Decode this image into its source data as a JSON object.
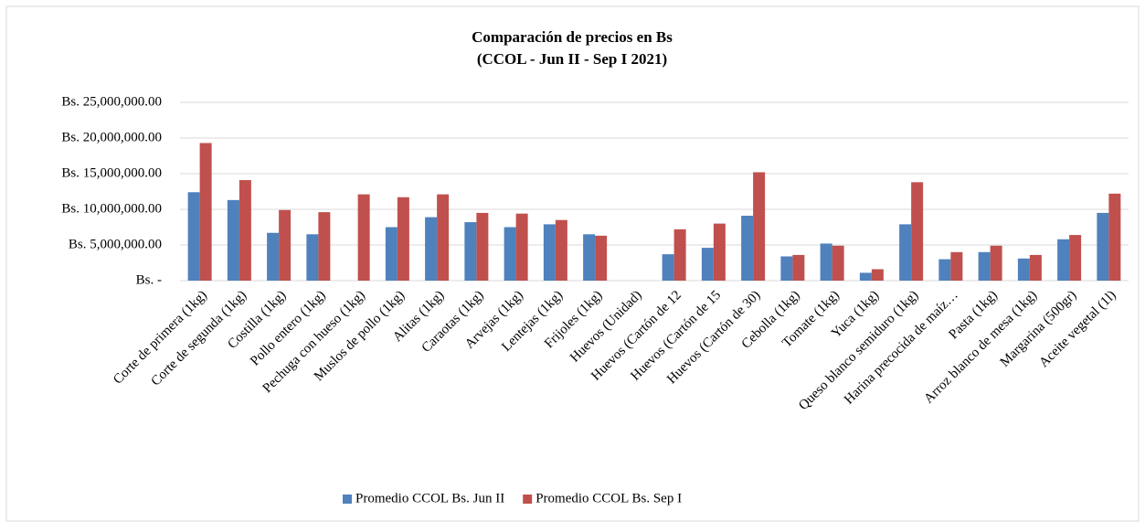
{
  "chart_data": {
    "type": "bar",
    "title": "Comparación de precios en Bs",
    "subtitle": "(CCOL - Jun II - Sep I 2021)",
    "categories": [
      "Corte de primera (1kg)",
      "Corte de segunda (1kg)",
      "Costilla (1kg)",
      "Pollo entero (1kg)",
      "Pechuga con hueso (1kg)",
      "Muslos de pollo (1kg)",
      "Alitas (1kg)",
      "Caraotas (1kg)",
      "Arvejas (1kg)",
      "Lentejas (1kg)",
      "Frijoles (1kg)",
      "Huevos (Unidad)",
      "Huevos (Cartón de 12",
      "Huevos (Cartón de 15",
      "Huevos (Cartón de 30)",
      "Cebolla (1kg)",
      "Tomate (1kg)",
      "Yuca (1kg)",
      "Queso blanco semiduro (1kg)",
      "Harina precocida de maíz…",
      "Pasta (1kg)",
      "Arroz blanco de mesa (1kg)",
      "Margarina (500gr)",
      "Aceite vegetal (1l)"
    ],
    "series": [
      {
        "name": "Promedio CCOL Bs. Jun II",
        "color": "#4f81bd",
        "values": [
          12400000,
          11300000,
          6700000,
          6500000,
          null,
          7500000,
          8900000,
          8200000,
          7500000,
          7900000,
          6500000,
          null,
          3700000,
          4600000,
          9100000,
          3400000,
          5200000,
          1100000,
          7900000,
          3000000,
          4000000,
          3100000,
          5800000,
          9500000
        ]
      },
      {
        "name": "Promedio CCOL Bs. Sep I",
        "color": "#c0504d",
        "values": [
          19300000,
          14100000,
          9900000,
          9600000,
          12100000,
          11700000,
          12100000,
          9500000,
          9400000,
          8500000,
          6300000,
          null,
          7200000,
          8000000,
          15200000,
          3600000,
          4900000,
          1600000,
          13800000,
          4000000,
          4900000,
          3600000,
          6400000,
          12200000
        ]
      }
    ],
    "ylim": [
      0,
      25000000
    ],
    "yticks": [
      {
        "value": 0,
        "label": "Bs. -"
      },
      {
        "value": 5000000,
        "label": "Bs. 5,000,000.00"
      },
      {
        "value": 10000000,
        "label": "Bs. 10,000,000.00"
      },
      {
        "value": 15000000,
        "label": "Bs. 15,000,000.00"
      },
      {
        "value": 20000000,
        "label": "Bs. 20,000,000.00"
      },
      {
        "value": 25000000,
        "label": "Bs. 25,000,000.00"
      }
    ],
    "grid": true,
    "legend": "bottom"
  }
}
